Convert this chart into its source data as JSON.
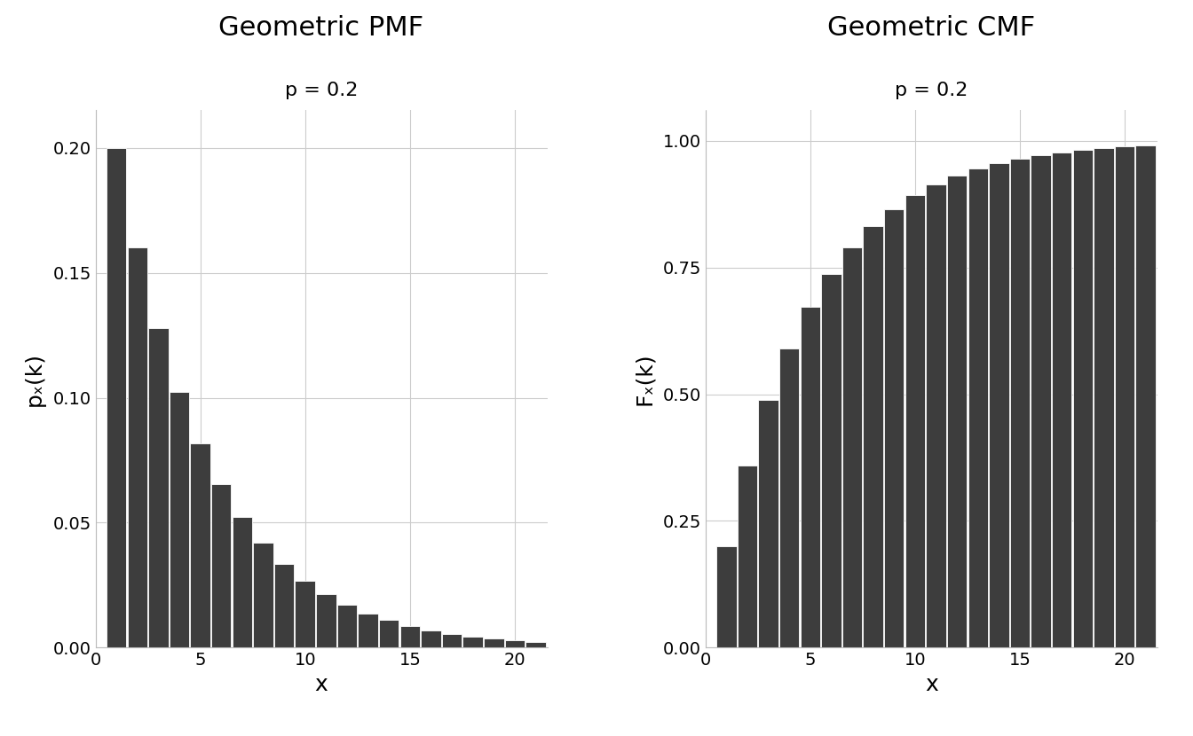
{
  "p": 0.2,
  "k_values": [
    1,
    2,
    3,
    4,
    5,
    6,
    7,
    8,
    9,
    10,
    11,
    12,
    13,
    14,
    15,
    16,
    17,
    18,
    19,
    20,
    21
  ],
  "title_pmf": "Geometric PMF",
  "title_cmf": "Geometric CMF",
  "subtitle": "p = 0.2",
  "xlabel": "x",
  "ylabel_pmf": "pₓ(k)",
  "ylabel_cmf": "Fₓ(k)",
  "bar_color": "#3d3d3d",
  "bar_edge_color": "#ffffff",
  "bar_edge_width": 0.6,
  "background_color": "#ffffff",
  "grid_color": "#cccccc",
  "title_fontsize": 22,
  "subtitle_fontsize": 16,
  "axis_label_fontsize": 18,
  "tick_fontsize": 14,
  "ylim_pmf": [
    0,
    0.215
  ],
  "ylim_cmf": [
    0,
    1.06
  ],
  "xticks_pmf": [
    0,
    5,
    10,
    15,
    20
  ],
  "xticks_cmf": [
    0,
    5,
    10,
    15,
    20
  ],
  "yticks_pmf": [
    0.0,
    0.05,
    0.1,
    0.15,
    0.2
  ],
  "yticks_cmf": [
    0.0,
    0.25,
    0.5,
    0.75,
    1.0
  ]
}
